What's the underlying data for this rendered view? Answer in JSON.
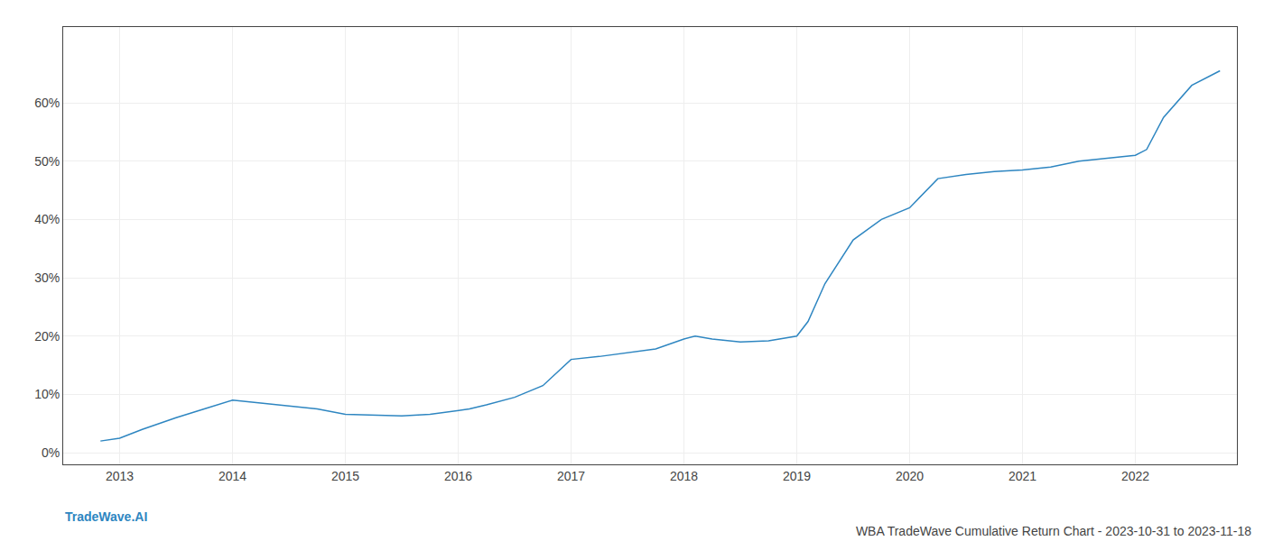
{
  "chart_data": {
    "type": "line",
    "title": "WBA TradeWave Cumulative Return Chart - 2023-10-31 to 2023-11-18",
    "annotations": [
      "TradeWave.AI"
    ],
    "color": "#2e86c1",
    "x": [
      2012.83,
      2013.0,
      2013.2,
      2013.5,
      2013.75,
      2014.0,
      2014.25,
      2014.5,
      2014.75,
      2015.0,
      2015.25,
      2015.5,
      2015.75,
      2016.0,
      2016.1,
      2016.25,
      2016.5,
      2016.75,
      2017.0,
      2017.25,
      2017.5,
      2017.75,
      2018.0,
      2018.1,
      2018.25,
      2018.5,
      2018.75,
      2019.0,
      2019.1,
      2019.25,
      2019.5,
      2019.75,
      2020.0,
      2020.25,
      2020.5,
      2020.75,
      2021.0,
      2021.25,
      2021.5,
      2021.75,
      2022.0,
      2022.1,
      2022.25,
      2022.5,
      2022.75
    ],
    "values": [
      0.02,
      0.025,
      0.04,
      0.06,
      0.075,
      0.09,
      0.085,
      0.08,
      0.075,
      0.066,
      0.064,
      0.063,
      0.066,
      0.072,
      0.075,
      0.082,
      0.095,
      0.115,
      0.16,
      0.165,
      0.172,
      0.178,
      0.195,
      0.2,
      0.195,
      0.19,
      0.192,
      0.2,
      0.225,
      0.29,
      0.365,
      0.4,
      0.42,
      0.47,
      0.477,
      0.482,
      0.485,
      0.49,
      0.5,
      0.505,
      0.51,
      0.52,
      0.575,
      0.63,
      0.655
    ],
    "xlim": [
      2012.5,
      2022.9
    ],
    "ylim": [
      -0.02,
      0.73
    ],
    "xticks": [
      2013,
      2014,
      2015,
      2016,
      2017,
      2018,
      2019,
      2020,
      2021,
      2022
    ],
    "yticks": [
      {
        "value": 0.0,
        "label": "0%"
      },
      {
        "value": 0.1,
        "label": "10%"
      },
      {
        "value": 0.2,
        "label": "20%"
      },
      {
        "value": 0.3,
        "label": "30%"
      },
      {
        "value": 0.4,
        "label": "40%"
      },
      {
        "value": 0.5,
        "label": "50%"
      },
      {
        "value": 0.6,
        "label": "60%"
      }
    ],
    "grid": true
  }
}
